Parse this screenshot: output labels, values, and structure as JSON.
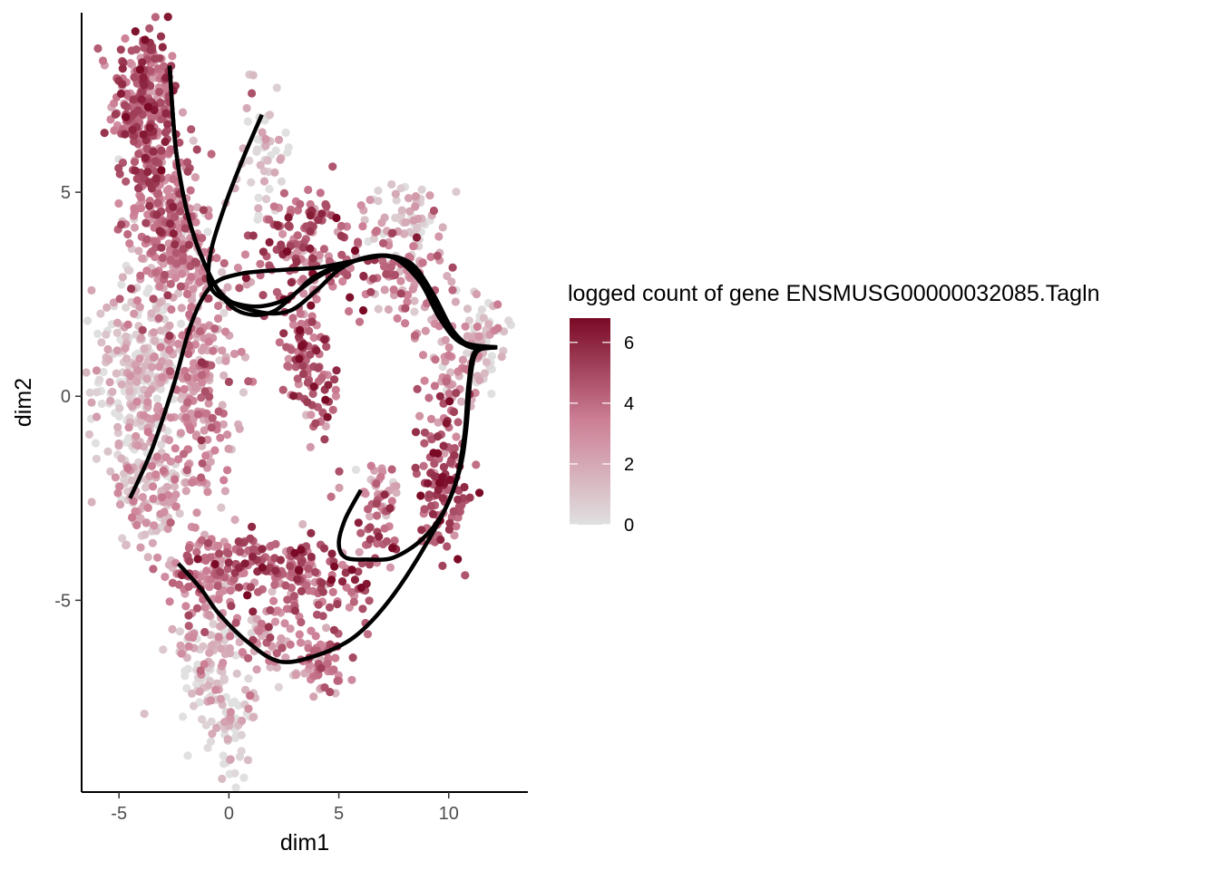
{
  "chart_data": {
    "type": "scatter",
    "xlabel": "dim1",
    "ylabel": "dim2",
    "xlim": [
      -6.7,
      13.6
    ],
    "ylim": [
      -9.7,
      9.4
    ],
    "x_ticks": [
      -5,
      0,
      5,
      10
    ],
    "y_ticks": [
      -5,
      0,
      5
    ],
    "x_tick_labels": [
      "-5",
      "0",
      "5",
      "10"
    ],
    "y_tick_labels": [
      "-5",
      "0",
      "5"
    ],
    "grid": false,
    "legend": {
      "title": "logged count of gene ENSMUSG00000032085.Tagln",
      "placement": "right",
      "min": 0,
      "max": 6.8,
      "ticks": [
        0,
        2,
        4,
        6
      ],
      "tick_labels": [
        "0",
        "2",
        "4",
        "6"
      ],
      "color_low": "#e0e0e0",
      "color_high": "#7a0a26"
    },
    "clusters": [
      {
        "cx": -3.8,
        "cy": 7.2,
        "sx": 0.75,
        "sy": 0.9,
        "n": 260,
        "mean": 4.2
      },
      {
        "cx": -3.2,
        "cy": 5.0,
        "sx": 0.8,
        "sy": 0.7,
        "n": 160,
        "mean": 3.6
      },
      {
        "cx": -2.5,
        "cy": 3.3,
        "sx": 1.0,
        "sy": 0.8,
        "n": 140,
        "mean": 3.0
      },
      {
        "cx": 1.7,
        "cy": 6.1,
        "sx": 0.55,
        "sy": 0.8,
        "n": 50,
        "mean": 0.6
      },
      {
        "cx": -4.0,
        "cy": 0.5,
        "sx": 1.1,
        "sy": 1.3,
        "n": 280,
        "mean": 1.0
      },
      {
        "cx": -1.5,
        "cy": 0.5,
        "sx": 0.9,
        "sy": 1.7,
        "n": 260,
        "mean": 2.7
      },
      {
        "cx": -3.8,
        "cy": -2.3,
        "sx": 0.8,
        "sy": 0.7,
        "n": 110,
        "mean": 1.6
      },
      {
        "cx": 3.5,
        "cy": 3.8,
        "sx": 1.6,
        "sy": 0.7,
        "n": 140,
        "mean": 4.2
      },
      {
        "cx": 8.2,
        "cy": 4.3,
        "sx": 0.9,
        "sy": 0.5,
        "n": 70,
        "mean": 1.2
      },
      {
        "cx": 8.0,
        "cy": 2.8,
        "sx": 1.0,
        "sy": 0.6,
        "n": 80,
        "mean": 3.2
      },
      {
        "cx": 3.5,
        "cy": 1.0,
        "sx": 0.55,
        "sy": 0.9,
        "n": 90,
        "mean": 4.0
      },
      {
        "cx": 4.3,
        "cy": -0.3,
        "sx": 0.3,
        "sy": 0.5,
        "n": 25,
        "mean": 4.5
      },
      {
        "cx": 11.6,
        "cy": 1.3,
        "sx": 0.55,
        "sy": 0.6,
        "n": 70,
        "mean": 0.9
      },
      {
        "cx": 10.0,
        "cy": 0.3,
        "sx": 0.6,
        "sy": 0.9,
        "n": 50,
        "mean": 2.6
      },
      {
        "cx": 9.8,
        "cy": -2.2,
        "sx": 0.6,
        "sy": 1.0,
        "n": 130,
        "mean": 4.6
      },
      {
        "cx": 6.7,
        "cy": -2.3,
        "sx": 0.6,
        "sy": 0.35,
        "n": 35,
        "mean": 2.4
      },
      {
        "cx": 6.8,
        "cy": -3.4,
        "sx": 0.4,
        "sy": 0.4,
        "n": 30,
        "mean": 4.8
      },
      {
        "cx": -0.7,
        "cy": -4.3,
        "sx": 1.1,
        "sy": 0.5,
        "n": 130,
        "mean": 3.3
      },
      {
        "cx": 2.2,
        "cy": -4.1,
        "sx": 1.3,
        "sy": 0.3,
        "n": 90,
        "mean": 4.5
      },
      {
        "cx": 4.0,
        "cy": -4.7,
        "sx": 0.9,
        "sy": 0.6,
        "n": 60,
        "mean": 4.0
      },
      {
        "cx": 5.9,
        "cy": -4.8,
        "sx": 0.3,
        "sy": 0.5,
        "n": 20,
        "mean": 5.2
      },
      {
        "cx": 4.2,
        "cy": -6.5,
        "sx": 0.55,
        "sy": 0.4,
        "n": 65,
        "mean": 3.2
      },
      {
        "cx": 2.0,
        "cy": -6.0,
        "sx": 0.8,
        "sy": 0.5,
        "n": 45,
        "mean": 2.6
      },
      {
        "cx": -0.6,
        "cy": -6.6,
        "sx": 0.9,
        "sy": 0.8,
        "n": 130,
        "mean": 0.8
      },
      {
        "cx": 0.3,
        "cy": -8.2,
        "sx": 0.45,
        "sy": 0.6,
        "n": 45,
        "mean": 0.4
      }
    ],
    "curves": [
      {
        "points": [
          [
            -2.7,
            8.1
          ],
          [
            -2.4,
            6.0
          ],
          [
            -1.8,
            4.3
          ],
          [
            -0.9,
            3.0
          ],
          [
            0,
            2.35
          ],
          [
            1.5,
            2.05
          ],
          [
            2.8,
            2.1
          ],
          [
            4.0,
            2.6
          ],
          [
            5.0,
            3.1
          ],
          [
            6.2,
            3.4
          ],
          [
            7.5,
            3.4
          ],
          [
            8.6,
            3.0
          ],
          [
            9.5,
            2.2
          ],
          [
            10.3,
            1.5
          ],
          [
            11.0,
            1.2
          ],
          [
            12.2,
            1.2
          ]
        ]
      },
      {
        "points": [
          [
            -2.7,
            8.1
          ],
          [
            -2.4,
            6.0
          ],
          [
            -1.8,
            4.3
          ],
          [
            -0.9,
            3.0
          ],
          [
            0,
            2.25
          ],
          [
            1.0,
            2.0
          ],
          [
            2.1,
            2.1
          ],
          [
            3.2,
            2.6
          ],
          [
            4.3,
            3.0
          ],
          [
            5.6,
            3.3
          ],
          [
            7.0,
            3.45
          ],
          [
            8.2,
            3.2
          ],
          [
            9.2,
            2.5
          ],
          [
            10.0,
            1.7
          ],
          [
            10.8,
            1.3
          ],
          [
            12.2,
            1.2
          ]
        ]
      },
      {
        "points": [
          [
            1.5,
            6.9
          ],
          [
            0.7,
            5.9
          ],
          [
            -0.1,
            4.8
          ],
          [
            -0.8,
            3.6
          ],
          [
            -0.9,
            2.8
          ],
          [
            -0.3,
            2.4
          ],
          [
            1.2,
            2.2
          ],
          [
            2.7,
            2.4
          ],
          [
            3.8,
            2.9
          ],
          [
            5.0,
            3.2
          ],
          [
            6.5,
            3.4
          ],
          [
            7.5,
            3.4
          ],
          [
            8.7,
            2.8
          ],
          [
            9.6,
            1.9
          ],
          [
            10.6,
            1.3
          ],
          [
            12.2,
            1.2
          ]
        ]
      },
      {
        "points": [
          [
            -4.5,
            -2.5
          ],
          [
            -3.5,
            -1.3
          ],
          [
            -2.5,
            0.3
          ],
          [
            -1.7,
            1.8
          ],
          [
            -0.8,
            2.7
          ],
          [
            0.5,
            3.0
          ],
          [
            2.5,
            3.1
          ],
          [
            4.0,
            3.15
          ],
          [
            5.5,
            3.3
          ],
          [
            7.0,
            3.45
          ],
          [
            8.3,
            3.25
          ],
          [
            9.3,
            2.5
          ],
          [
            10.2,
            1.6
          ],
          [
            11.1,
            1.2
          ],
          [
            12.2,
            1.2
          ]
        ]
      },
      {
        "points": [
          [
            12.2,
            1.2
          ],
          [
            11.3,
            1.1
          ],
          [
            11.0,
            0.5
          ],
          [
            10.8,
            -0.8
          ],
          [
            10.5,
            -1.8
          ],
          [
            9.8,
            -2.8
          ],
          [
            8.8,
            -3.5
          ],
          [
            7.5,
            -3.95
          ],
          [
            6.3,
            -4.0
          ],
          [
            5.3,
            -3.95
          ],
          [
            5.0,
            -3.6
          ],
          [
            5.3,
            -3.0
          ],
          [
            6.0,
            -2.3
          ]
        ]
      },
      {
        "points": [
          [
            12.2,
            1.2
          ],
          [
            11.2,
            1.1
          ],
          [
            10.9,
            0.3
          ],
          [
            10.7,
            -1.0
          ],
          [
            10.2,
            -2.3
          ],
          [
            9.0,
            -3.6
          ],
          [
            7.3,
            -5.0
          ],
          [
            5.7,
            -5.9
          ],
          [
            4.0,
            -6.35
          ],
          [
            2.3,
            -6.5
          ],
          [
            0.8,
            -6.0
          ],
          [
            -0.5,
            -5.3
          ],
          [
            -1.3,
            -4.7
          ],
          [
            -2.3,
            -4.1
          ]
        ]
      }
    ]
  }
}
